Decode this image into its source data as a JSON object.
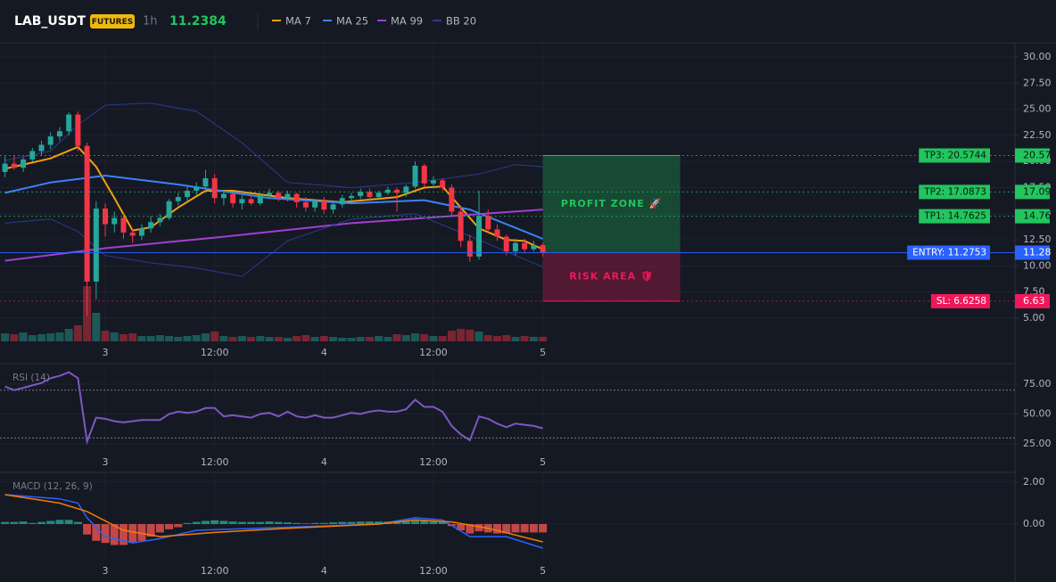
{
  "header": {
    "symbol": "LAB_USDT",
    "badge": "FUTURES",
    "interval": "1h",
    "last_price": 11.2384
  },
  "chart_data": [
    {
      "type": "candlestick",
      "x": [
        -11,
        -10,
        -9,
        -8,
        -7,
        -6,
        -5,
        -4,
        -3,
        -2,
        -1,
        0,
        1,
        2,
        3,
        4,
        5,
        6,
        7,
        8,
        9,
        10,
        11,
        12,
        13,
        14,
        15,
        16,
        17,
        18,
        19,
        20,
        21,
        22,
        23,
        24,
        25,
        26,
        27,
        28,
        29,
        30,
        31,
        32,
        33,
        34,
        35,
        36,
        37,
        38,
        39,
        40,
        41,
        42,
        43,
        44,
        45,
        46,
        47,
        48
      ],
      "open": [
        19.0,
        19.8,
        19.4,
        20.2,
        21.0,
        21.6,
        22.4,
        22.9,
        24.5,
        21.5,
        8.5,
        15.5,
        14.0,
        14.6,
        13.2,
        12.9,
        13.6,
        14.2,
        14.6,
        16.2,
        16.6,
        17.2,
        17.6,
        18.4,
        16.5,
        16.9,
        16.0,
        16.4,
        16.0,
        16.8,
        17.0,
        16.5,
        16.9,
        16.1,
        15.6,
        16.2,
        15.4,
        15.9,
        16.5,
        16.7,
        17.1,
        16.6,
        17.0,
        17.3,
        17.0,
        17.6,
        19.6,
        17.9,
        18.2,
        17.5,
        15.2,
        12.4,
        10.9,
        14.8,
        13.5,
        12.8,
        11.4,
        12.2,
        11.6,
        12.0
      ],
      "high": [
        20.5,
        20.6,
        20.4,
        21.3,
        22.0,
        22.8,
        23.3,
        24.7,
        24.8,
        21.8,
        16.2,
        16.0,
        15.2,
        15.0,
        13.6,
        14.0,
        14.8,
        15.0,
        16.4,
        17.0,
        17.6,
        18.0,
        19.2,
        18.8,
        17.2,
        17.0,
        16.8,
        16.8,
        17.0,
        17.4,
        17.2,
        17.2,
        17.0,
        16.6,
        16.4,
        16.6,
        16.2,
        16.8,
        17.0,
        17.4,
        17.4,
        17.2,
        17.6,
        17.5,
        17.8,
        20.0,
        19.8,
        18.6,
        18.4,
        17.8,
        15.6,
        13.0,
        17.2,
        15.4,
        14.0,
        13.0,
        12.6,
        12.6,
        12.4,
        12.2
      ],
      "low": [
        18.5,
        19.2,
        19.0,
        20.0,
        20.6,
        21.2,
        22.0,
        22.5,
        21.0,
        5.2,
        6.8,
        12.8,
        13.2,
        12.6,
        12.2,
        12.5,
        13.2,
        13.8,
        14.4,
        15.8,
        16.2,
        16.8,
        17.0,
        16.0,
        15.8,
        15.6,
        15.4,
        15.8,
        15.8,
        16.4,
        16.2,
        16.2,
        15.6,
        15.2,
        15.2,
        15.0,
        15.0,
        15.6,
        16.0,
        16.4,
        16.2,
        16.4,
        16.8,
        15.2,
        16.6,
        17.4,
        17.6,
        17.4,
        17.2,
        14.8,
        11.8,
        10.4,
        10.6,
        13.2,
        12.4,
        11.0,
        11.0,
        11.2,
        11.4,
        10.9
      ],
      "close": [
        19.8,
        19.4,
        20.2,
        21.0,
        21.6,
        22.4,
        22.9,
        24.5,
        21.5,
        8.5,
        15.5,
        14.0,
        14.6,
        13.2,
        12.9,
        13.6,
        14.2,
        14.6,
        16.2,
        16.6,
        17.2,
        17.6,
        18.4,
        16.5,
        16.9,
        16.0,
        16.4,
        16.0,
        16.8,
        17.0,
        16.5,
        16.9,
        16.1,
        15.6,
        16.2,
        15.4,
        15.9,
        16.5,
        16.7,
        17.1,
        16.6,
        17.0,
        17.3,
        17.0,
        17.6,
        19.6,
        17.9,
        18.2,
        17.5,
        15.2,
        12.4,
        10.9,
        14.8,
        13.5,
        12.8,
        11.4,
        12.2,
        11.6,
        12.0,
        11.2384
      ],
      "volume": [
        9,
        8,
        10,
        7,
        8,
        9,
        10,
        14,
        18,
        62,
        32,
        12,
        10,
        8,
        9,
        6,
        6,
        7,
        6,
        5,
        6,
        7,
        9,
        11,
        6,
        5,
        6,
        5,
        6,
        5,
        5,
        4,
        6,
        7,
        5,
        6,
        5,
        4,
        4,
        5,
        5,
        6,
        5,
        8,
        7,
        9,
        8,
        6,
        6,
        12,
        14,
        13,
        11,
        7,
        6,
        7,
        5,
        6,
        5,
        5
      ],
      "up_color": "#26a69a",
      "down_color": "#f23645",
      "series": [
        {
          "name": "MA 7",
          "color": "#f59e0b",
          "x": [
            -11,
            -6,
            -3,
            -1,
            1,
            3,
            5,
            8,
            11,
            14,
            20,
            26,
            32,
            35,
            37,
            39,
            41,
            44,
            46,
            48
          ],
          "values": [
            19.3,
            20.3,
            21.4,
            19.5,
            16.5,
            13.4,
            13.7,
            15.6,
            17.2,
            17.2,
            16.5,
            16.1,
            16.6,
            17.5,
            17.6,
            15.6,
            13.6,
            12.5,
            12.4,
            11.6
          ]
        },
        {
          "name": "MA 25",
          "color": "#3b82f6",
          "x": [
            -11,
            -6,
            0,
            8,
            18,
            27,
            35,
            40,
            48
          ],
          "values": [
            17.0,
            18.0,
            18.65,
            17.8,
            16.5,
            16.0,
            16.3,
            15.4,
            12.6
          ]
        },
        {
          "name": "MA 99",
          "color": "#a23fd1",
          "x": [
            -11,
            0,
            13,
            27,
            48
          ],
          "values": [
            10.5,
            11.7,
            12.8,
            14.1,
            15.4
          ]
        },
        {
          "name": "BB 20",
          "color": "#2b3c8c",
          "x": [
            -11,
            -6,
            -3,
            0,
            5,
            10,
            15,
            20,
            27,
            34,
            41,
            45,
            48
          ],
          "upper": [
            20.1,
            21.0,
            23.5,
            25.4,
            25.6,
            24.8,
            21.8,
            18.0,
            17.5,
            18.0,
            18.8,
            19.7,
            19.5
          ],
          "lower": [
            14.1,
            14.5,
            13.3,
            11.0,
            10.3,
            9.8,
            9.0,
            12.4,
            14.5,
            15.0,
            12.5,
            11.0,
            9.9
          ]
        }
      ],
      "levels": [
        {
          "label": "TP3: 20.5744",
          "value": 20.5744,
          "value_label": "20.57",
          "color": "#22c55e"
        },
        {
          "label": "TP2: 17.0873",
          "value": 17.0873,
          "value_label": "17.09",
          "color": "#22c55e"
        },
        {
          "label": "TP1: 14.7625",
          "value": 14.7625,
          "value_label": "14.76",
          "color": "#22c55e"
        },
        {
          "label": "ENTRY: 11.2753",
          "value": 11.2753,
          "value_label": "11.28",
          "color": "#2962ff"
        },
        {
          "label": "SL: 6.6258",
          "value": 6.6258,
          "value_label": "6.63",
          "color": "#f0185a"
        }
      ],
      "zones": [
        {
          "label": "PROFIT ZONE 🚀",
          "range": [
            11.2753,
            20.5744
          ],
          "color": "#22c55e"
        },
        {
          "label": "RISK AREA 🛡",
          "range": [
            6.6258,
            11.2753
          ],
          "color": "#f0185a"
        }
      ],
      "xlim": [
        -11.55,
        99.8
      ],
      "xticks": [
        {
          "value": 0,
          "label": "3"
        },
        {
          "value": 12,
          "label": "12:00"
        },
        {
          "value": 24,
          "label": "4"
        },
        {
          "value": 36,
          "label": "12:00"
        },
        {
          "value": 48,
          "label": "5"
        }
      ],
      "ylim": [
        2.78,
        31.37
      ],
      "yticks": [
        {
          "value": 5,
          "label": "5.00"
        },
        {
          "value": 7.5,
          "label": "7.50"
        },
        {
          "value": 10,
          "label": "10.00"
        },
        {
          "value": 12.5,
          "label": "12.50"
        },
        {
          "value": 15,
          "label": "15.00"
        },
        {
          "value": 17.5,
          "label": "17.50"
        },
        {
          "value": 20,
          "label": "20.00"
        },
        {
          "value": 22.5,
          "label": "22.50"
        },
        {
          "value": 25,
          "label": "25.00"
        },
        {
          "value": 27.5,
          "label": "27.50"
        },
        {
          "value": 30,
          "label": "30.00"
        }
      ],
      "grid": true
    },
    {
      "type": "line",
      "title": "RSI (14)",
      "color": "#7e57c2",
      "x": [
        -11,
        -10,
        -9,
        -8,
        -7,
        -6,
        -5,
        -4,
        -3,
        -2,
        -1,
        0,
        1,
        2,
        3,
        4,
        5,
        6,
        7,
        8,
        9,
        10,
        11,
        12,
        13,
        14,
        15,
        16,
        17,
        18,
        19,
        20,
        21,
        22,
        23,
        24,
        25,
        26,
        27,
        28,
        29,
        30,
        31,
        32,
        33,
        34,
        35,
        36,
        37,
        38,
        39,
        40,
        41,
        42,
        43,
        44,
        45,
        46,
        47,
        48
      ],
      "values": [
        73,
        70,
        72,
        74,
        76,
        80,
        82,
        85,
        80,
        27,
        47,
        46,
        44,
        43,
        44,
        45,
        45,
        45,
        50,
        52,
        51,
        52,
        55,
        55,
        48,
        49,
        48,
        47,
        50,
        51,
        48,
        52,
        48,
        47,
        49,
        47,
        47,
        49,
        51,
        50,
        52,
        53,
        52,
        52,
        54,
        62,
        56,
        56,
        52,
        40,
        33,
        28,
        48,
        46,
        42,
        39,
        42,
        41,
        40,
        38
      ],
      "band_lines": [
        30,
        70
      ],
      "xlim": [
        -11.55,
        99.8
      ],
      "xticks": [
        {
          "value": 0,
          "label": "3"
        },
        {
          "value": 12,
          "label": "12:00"
        },
        {
          "value": 24,
          "label": "4"
        },
        {
          "value": 36,
          "label": "12:00"
        },
        {
          "value": 48,
          "label": "5"
        }
      ],
      "ylim": [
        19.8,
        90.7
      ],
      "yticks": [
        {
          "value": 25,
          "label": "25.00"
        },
        {
          "value": 50,
          "label": "50.00"
        },
        {
          "value": 75,
          "label": "75.00"
        }
      ],
      "grid": true
    },
    {
      "type": "macd",
      "title": "MACD (12, 26, 9)",
      "x": [
        -11,
        -10,
        -9,
        -8,
        -7,
        -6,
        -5,
        -4,
        -3,
        -2,
        -1,
        0,
        1,
        2,
        3,
        4,
        5,
        6,
        7,
        8,
        9,
        10,
        11,
        12,
        13,
        14,
        15,
        16,
        17,
        18,
        19,
        20,
        21,
        22,
        23,
        24,
        25,
        26,
        27,
        28,
        29,
        30,
        31,
        32,
        33,
        34,
        35,
        36,
        37,
        38,
        39,
        40,
        41,
        42,
        43,
        44,
        45,
        46,
        47,
        48
      ],
      "histogram": [
        0.1,
        0.1,
        0.12,
        0.05,
        0.1,
        0.15,
        0.2,
        0.2,
        0.1,
        -0.5,
        -0.8,
        -0.9,
        -1.0,
        -1.0,
        -0.9,
        -0.8,
        -0.6,
        -0.4,
        -0.25,
        -0.15,
        0.05,
        0.1,
        0.15,
        0.18,
        0.15,
        0.12,
        0.1,
        0.1,
        0.1,
        0.12,
        0.1,
        0.08,
        0.05,
        0.03,
        0.05,
        0.05,
        0.08,
        0.1,
        0.1,
        0.12,
        0.12,
        0.12,
        0.12,
        0.1,
        0.15,
        0.2,
        0.15,
        0.15,
        0.1,
        -0.1,
        -0.3,
        -0.45,
        -0.35,
        -0.4,
        -0.45,
        -0.45,
        -0.4,
        -0.4,
        -0.4,
        -0.4
      ],
      "up_color": "#26a69a",
      "down_color": "#ef5350",
      "series": [
        {
          "color": "#2962ff",
          "x": [
            -11,
            -5,
            -3,
            -2,
            0,
            3,
            6,
            10,
            20,
            30,
            34,
            37,
            40,
            44,
            48
          ],
          "values": [
            1.4,
            1.2,
            1.0,
            0.3,
            -0.6,
            -0.9,
            -0.7,
            -0.3,
            -0.15,
            0.0,
            0.3,
            0.2,
            -0.6,
            -0.6,
            -1.15
          ]
        },
        {
          "color": "#f57c00",
          "x": [
            -11,
            -5,
            -2,
            2,
            6,
            12,
            20,
            30,
            34,
            38,
            42,
            48
          ],
          "values": [
            1.4,
            1.0,
            0.6,
            -0.3,
            -0.6,
            -0.4,
            -0.2,
            0.0,
            0.2,
            0.1,
            -0.2,
            -0.85
          ]
        }
      ],
      "xlim": [
        -11.55,
        99.8
      ],
      "xticks": [
        {
          "value": 0,
          "label": "3"
        },
        {
          "value": 12,
          "label": "12:00"
        },
        {
          "value": 24,
          "label": "4"
        },
        {
          "value": 36,
          "label": "12:00"
        },
        {
          "value": 48,
          "label": "5"
        }
      ],
      "ylim": [
        -1.66,
        2.38
      ],
      "yticks": [
        {
          "value": 0,
          "label": "0.00"
        },
        {
          "value": 2,
          "label": "2.00"
        }
      ],
      "grid": true
    }
  ]
}
